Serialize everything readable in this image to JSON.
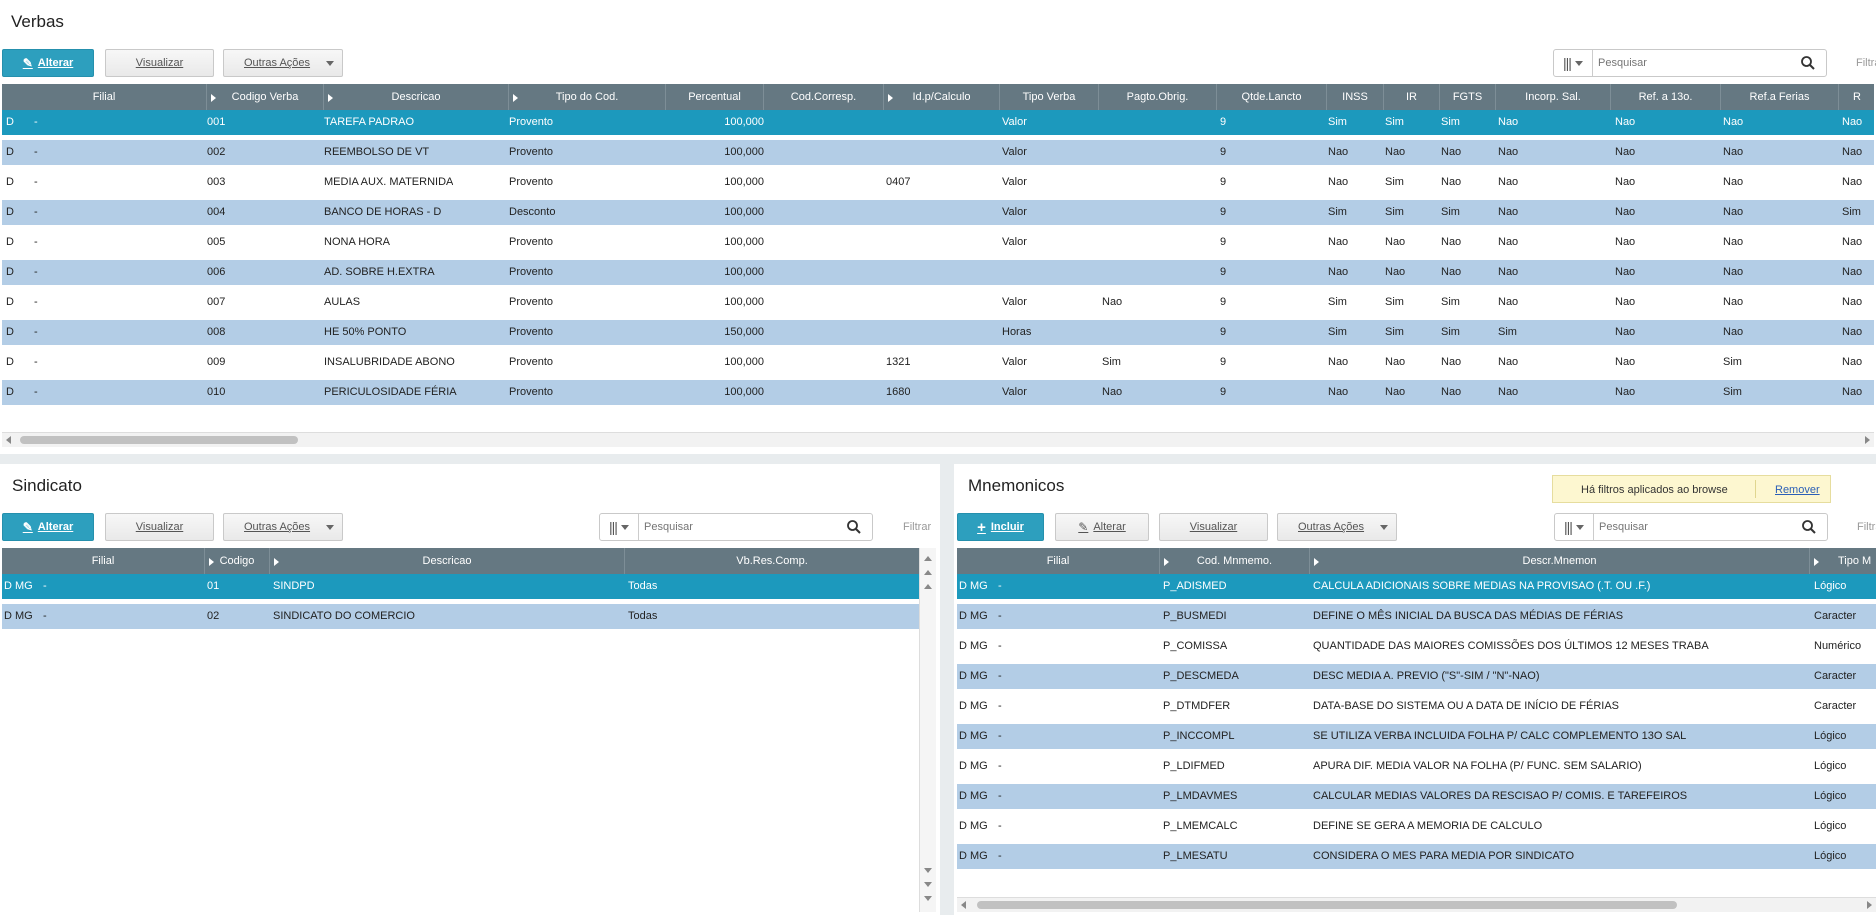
{
  "verbas": {
    "title": "Verbas",
    "alterar_label": "Alterar",
    "visualizar_label": "Visualizar",
    "outras_label": "Outras Ações",
    "search_placeholder": "Pesquisar",
    "filtrar_label": "Filtra",
    "columns": [
      "Filial",
      "Codigo Verba",
      "Descricao",
      "Tipo do Cod.",
      "Percentual",
      "Cod.Corresp.",
      "Id.p/Calculo",
      "Tipo Verba",
      "Pagto.Obrig.",
      "Qtde.Lancto",
      "INSS",
      "IR",
      "FGTS",
      "Incorp. Sal.",
      "Ref. a 13o.",
      "Ref.a Ferias",
      "R"
    ],
    "rows": [
      [
        "D",
        "-",
        "001",
        "TAREFA PADRAO",
        "Provento",
        "100,000",
        "",
        "",
        "Valor",
        "",
        "9",
        "Sim",
        "Sim",
        "Sim",
        "Nao",
        "Nao",
        "Nao",
        "Nao"
      ],
      [
        "D",
        "-",
        "002",
        "REEMBOLSO DE VT",
        "Provento",
        "100,000",
        "",
        "",
        "Valor",
        "",
        "9",
        "Nao",
        "Nao",
        "Nao",
        "Nao",
        "Nao",
        "Nao",
        "Nao"
      ],
      [
        "D",
        "-",
        "003",
        "MEDIA AUX. MATERNIDA",
        "Provento",
        "100,000",
        "",
        "0407",
        "Valor",
        "",
        "9",
        "Nao",
        "Sim",
        "Nao",
        "Nao",
        "Nao",
        "Nao",
        "Nao"
      ],
      [
        "D",
        "-",
        "004",
        "BANCO DE HORAS - D",
        "Desconto",
        "100,000",
        "",
        "",
        "Valor",
        "",
        "9",
        "Sim",
        "Sim",
        "Sim",
        "Nao",
        "Nao",
        "Nao",
        "Sim"
      ],
      [
        "D",
        "-",
        "005",
        "NONA HORA",
        "Provento",
        "100,000",
        "",
        "",
        "Valor",
        "",
        "9",
        "Nao",
        "Nao",
        "Nao",
        "Nao",
        "Nao",
        "Nao",
        "Nao"
      ],
      [
        "D",
        "-",
        "006",
        "AD. SOBRE H.EXTRA",
        "Provento",
        "100,000",
        "",
        "",
        "",
        "",
        "9",
        "Nao",
        "Nao",
        "Nao",
        "Nao",
        "Nao",
        "Nao",
        "Nao"
      ],
      [
        "D",
        "-",
        "007",
        "AULAS",
        "Provento",
        "100,000",
        "",
        "",
        "Valor",
        "Nao",
        "9",
        "Sim",
        "Sim",
        "Sim",
        "Nao",
        "Nao",
        "Nao",
        "Nao"
      ],
      [
        "D",
        "-",
        "008",
        "HE 50% PONTO",
        "Provento",
        "150,000",
        "",
        "",
        "Horas",
        "",
        "9",
        "Sim",
        "Sim",
        "Sim",
        "Sim",
        "Nao",
        "Nao",
        "Nao"
      ],
      [
        "D",
        "-",
        "009",
        "INSALUBRIDADE ABONO",
        "Provento",
        "100,000",
        "",
        "1321",
        "Valor",
        "Sim",
        "9",
        "Nao",
        "Nao",
        "Nao",
        "Nao",
        "Nao",
        "Sim",
        "Nao"
      ],
      [
        "D",
        "-",
        "010",
        "PERICULOSIDADE FÉRIA",
        "Provento",
        "100,000",
        "",
        "1680",
        "Valor",
        "Nao",
        "9",
        "Nao",
        "Nao",
        "Nao",
        "Nao",
        "Nao",
        "Sim",
        "Nao"
      ]
    ]
  },
  "sindicato": {
    "title": "Sindicato",
    "alterar_label": "Alterar",
    "visualizar_label": "Visualizar",
    "outras_label": "Outras Ações",
    "search_placeholder": "Pesquisar",
    "filtrar_label": "Filtrar",
    "columns": [
      "Filial",
      "Codigo",
      "Descricao",
      "Vb.Res.Comp."
    ],
    "rows": [
      [
        "D MG",
        "-",
        "01",
        "SINDPD",
        "Todas"
      ],
      [
        "D MG",
        "-",
        "02",
        "SINDICATO DO COMERCIO",
        "Todas"
      ]
    ]
  },
  "mnemonicos": {
    "title": "Mnemonicos",
    "filter_notice": "Há filtros aplicados ao browse",
    "remover_label": "Remover",
    "incluir_label": "Incluir",
    "alterar_label": "Alterar",
    "visualizar_label": "Visualizar",
    "outras_label": "Outras Ações",
    "search_placeholder": "Pesquisar",
    "filtrar_label": "Filtra",
    "columns": [
      "Filial",
      "Cod. Mnmemo.",
      "Descr.Mnemon",
      "Tipo M"
    ],
    "rows": [
      [
        "D MG",
        "-",
        "P_ADISMED",
        "CALCULA ADICIONAIS SOBRE MEDIAS NA PROVISAO (.T. OU .F.)",
        "Lógico"
      ],
      [
        "D MG",
        "-",
        "P_BUSMEDI",
        "DEFINE O MÊS INICIAL DA BUSCA DAS MÉDIAS DE FÉRIAS",
        "Caracter"
      ],
      [
        "D MG",
        "-",
        "P_COMISSA",
        "QUANTIDADE DAS MAIORES COMISSÕES DOS ÚLTIMOS 12 MESES TRABA",
        "Numérico"
      ],
      [
        "D MG",
        "-",
        "P_DESCMEDA",
        "DESC MEDIA A. PREVIO (\"S\"-SIM / \"N\"-NAO)",
        "Caracter"
      ],
      [
        "D MG",
        "-",
        "P_DTMDFER",
        "DATA-BASE DO SISTEMA OU A DATA DE INÍCIO DE FÉRIAS",
        "Caracter"
      ],
      [
        "D MG",
        "-",
        "P_INCCOMPL",
        "SE UTILIZA VERBA INCLUIDA FOLHA P/ CALC COMPLEMENTO 13O SAL",
        "Lógico"
      ],
      [
        "D MG",
        "-",
        "P_LDIFMED",
        "APURA DIF. MEDIA VALOR NA FOLHA (P/ FUNC. SEM SALARIO)",
        "Lógico"
      ],
      [
        "D MG",
        "-",
        "P_LMDAVMES",
        "CALCULAR MEDIAS VALORES DA RESCISAO P/ COMIS. E TAREFEIROS",
        "Lógico"
      ],
      [
        "D MG",
        "-",
        "P_LMEMCALC",
        "DEFINE SE GERA A MEMORIA DE CALCULO",
        "Lógico"
      ],
      [
        "D MG",
        "-",
        "P_LMESATU",
        "CONSIDERA O MES PARA MEDIA POR SINDICATO",
        "Lógico"
      ]
    ]
  },
  "colors": {
    "header": "#657882",
    "selected": "#1c99bd",
    "alt": "#b3cde6",
    "primary": "#2d9fbe"
  }
}
